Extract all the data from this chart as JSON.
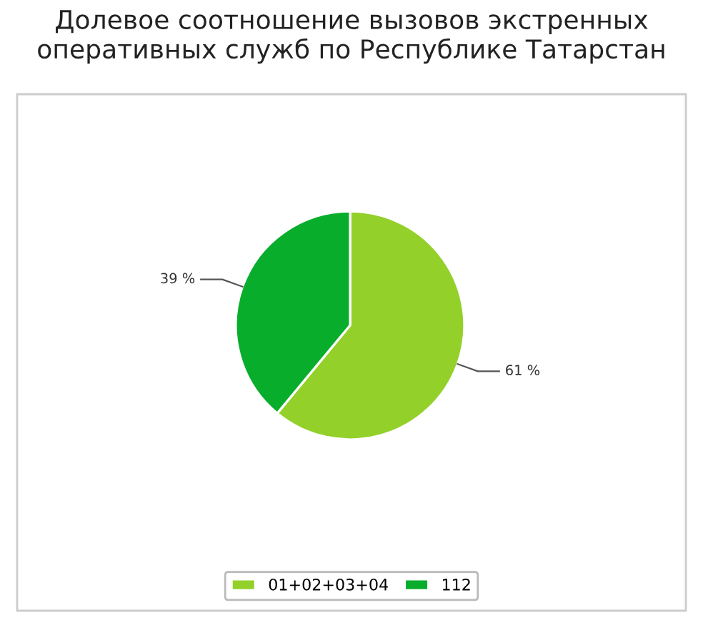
{
  "chart_data": {
    "type": "pie",
    "title": "Долевое соотношение вызовов экстренных оперативных служб по Республике Татарстан",
    "categories": [
      "01+02+03+04",
      "112"
    ],
    "values": [
      61,
      39
    ],
    "colors": [
      "#93d02a",
      "#08ad2c"
    ],
    "value_labels": [
      "61 %",
      "39 %"
    ],
    "legend": "bottom"
  }
}
